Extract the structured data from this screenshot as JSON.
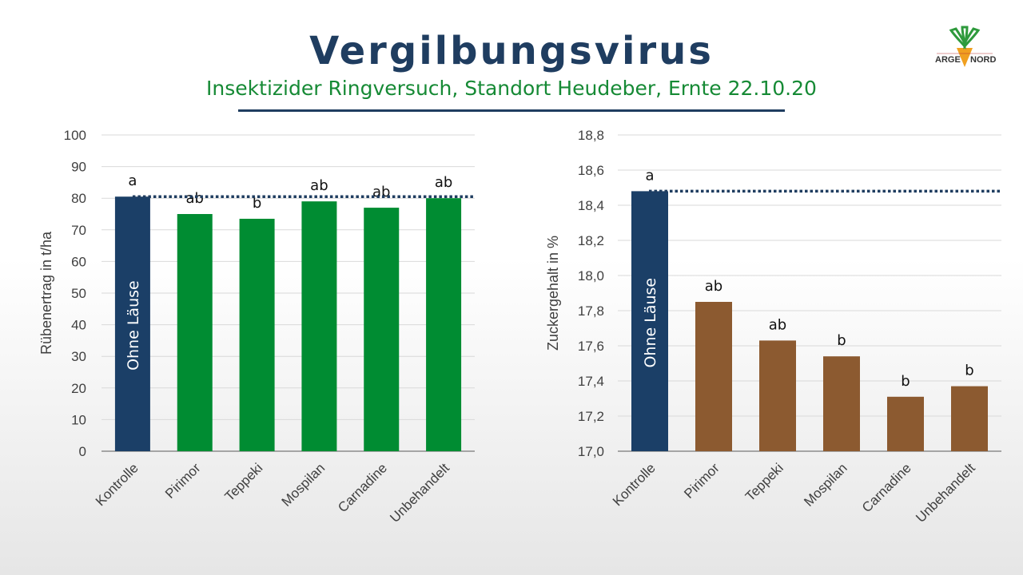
{
  "header": {
    "title": "Vergilbungsvirus",
    "subtitle": "Insektizider Ringversuch, Standort Heudeber, Ernte 22.10.20",
    "logo_text_left": "ARGE",
    "logo_text_right": "NORD"
  },
  "colors": {
    "title": "#1f3d60",
    "subtitle": "#168a35",
    "control_bar": "#1b3f67",
    "yield_bar": "#008c32",
    "sugar_bar": "#8c5a30",
    "reference_line": "#1f3d60"
  },
  "chart_data": [
    {
      "type": "bar",
      "categories": [
        "Kontrolle",
        "Pirimor",
        "Teppeki",
        "Mospilan",
        "Carnadine",
        "Unbehandelt"
      ],
      "values": [
        80.5,
        75,
        73.5,
        79,
        77,
        80
      ],
      "significance_labels": [
        "a",
        "ab",
        "b",
        "ab",
        "ab",
        "ab"
      ],
      "bar_text": "Ohne Läuse",
      "ylabel": "Rübenertrag  in t/ha",
      "ylim": [
        0,
        100
      ],
      "yticks": [
        "0",
        "10",
        "20",
        "30",
        "40",
        "50",
        "60",
        "70",
        "80",
        "90",
        "100"
      ],
      "reference_line": 80.5,
      "grid": true
    },
    {
      "type": "bar",
      "categories": [
        "Kontrolle",
        "Pirimor",
        "Teppeki",
        "Mospilan",
        "Carnadine",
        "Unbehandelt"
      ],
      "values": [
        18.48,
        17.85,
        17.63,
        17.54,
        17.31,
        17.37
      ],
      "significance_labels": [
        "a",
        "ab",
        "ab",
        "b",
        "b",
        "b"
      ],
      "bar_text": "Ohne Läuse",
      "ylabel": "Zuckergehalt  in %",
      "ylim": [
        17.0,
        18.8
      ],
      "yticks": [
        "17,0",
        "17,2",
        "17,4",
        "17,6",
        "17,8",
        "18,0",
        "18,2",
        "18,4",
        "18,6",
        "18,8"
      ],
      "reference_line": 18.48,
      "grid": true
    }
  ]
}
